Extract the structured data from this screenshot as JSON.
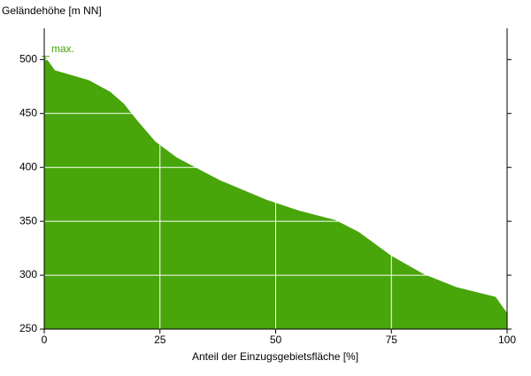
{
  "chart_data": {
    "type": "area",
    "y_label": "Geländehöhe [m NN]",
    "x_label": "Anteil der Einzugsgebietsfläche [%]",
    "annotation": "max.",
    "x": [
      0,
      0.8,
      2.3,
      9.6,
      14.3,
      17.2,
      20,
      24,
      28.7,
      38,
      48,
      55,
      63,
      68,
      75,
      82,
      89,
      97.5,
      100
    ],
    "values": [
      503,
      499,
      490,
      481,
      470,
      459,
      444,
      424,
      409,
      388,
      370,
      360,
      351,
      340,
      318,
      301,
      289,
      280,
      265
    ],
    "color": "#48a50a",
    "xlim": [
      0,
      100
    ],
    "ylim": [
      250,
      529
    ],
    "xticks": [
      0,
      25,
      50,
      75,
      100
    ],
    "yticks": [
      250,
      300,
      350,
      400,
      450,
      500
    ],
    "grid": true
  }
}
